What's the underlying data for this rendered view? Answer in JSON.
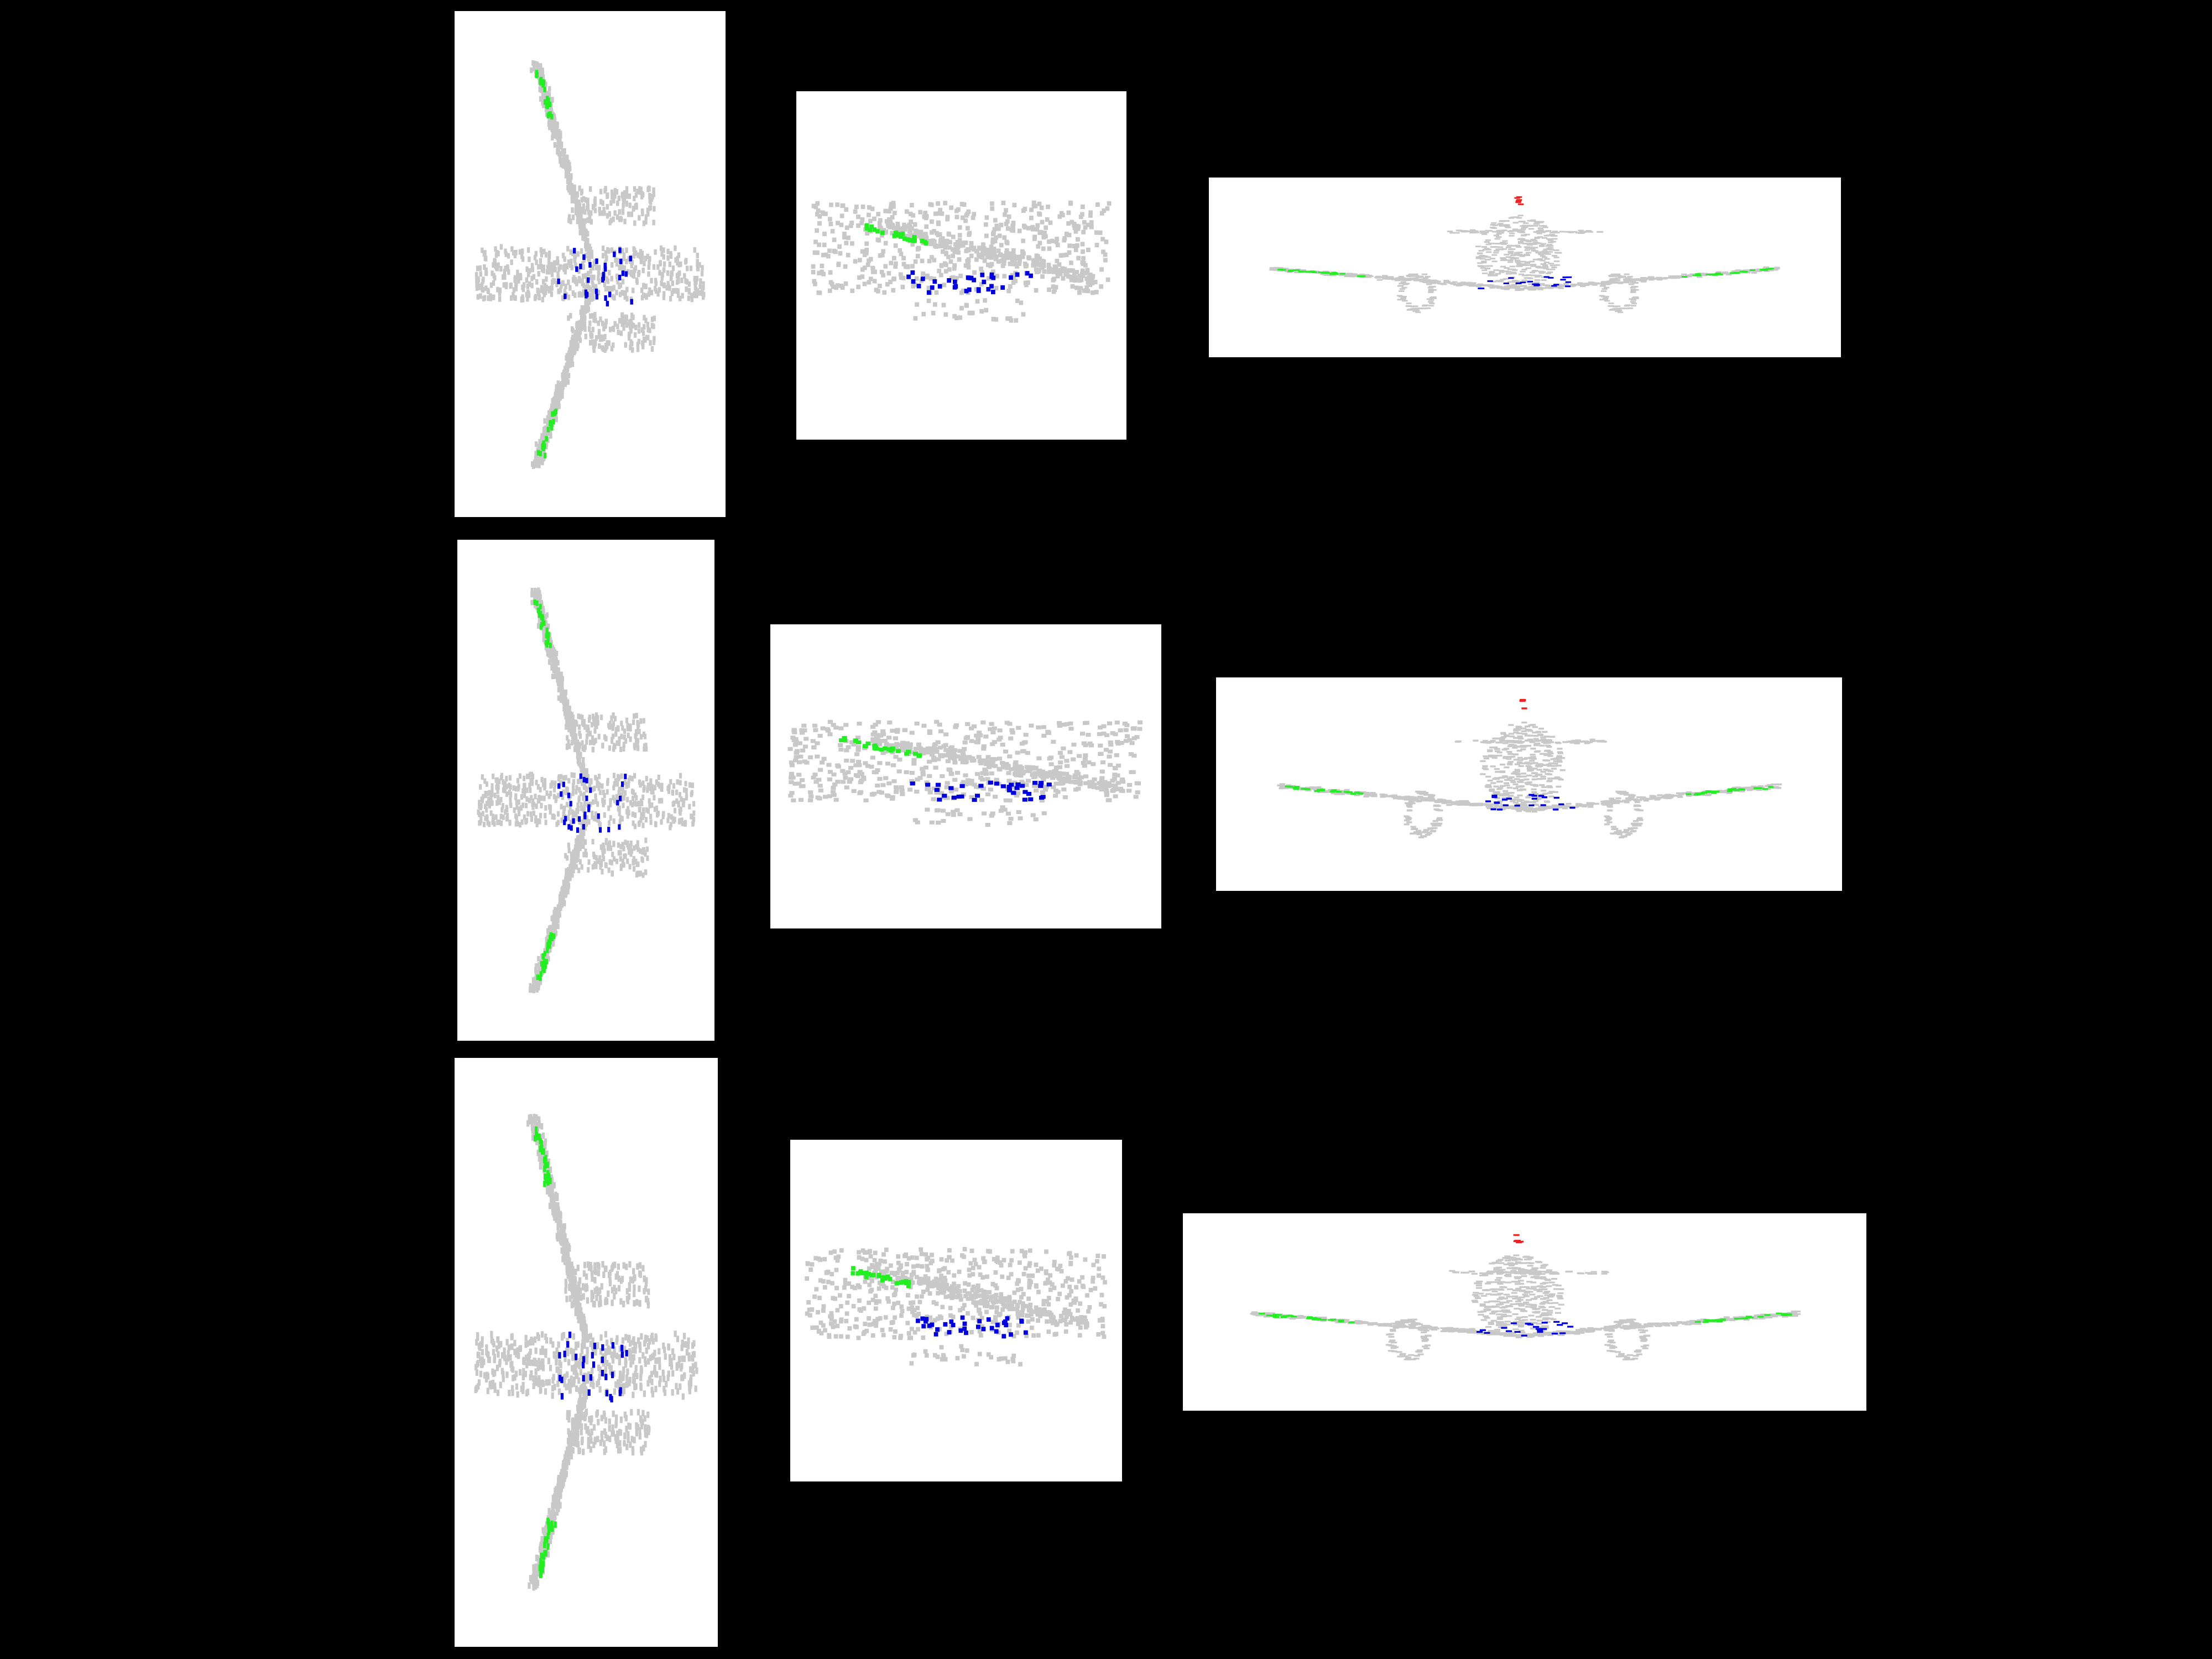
{
  "figure": {
    "rows": [
      {
        "views": [
          {
            "view": "top",
            "panel": "p-r1-top"
          },
          {
            "view": "side",
            "panel": "p-r1-side"
          },
          {
            "view": "front",
            "panel": "p-r1-front"
          }
        ]
      },
      {
        "views": [
          {
            "view": "top",
            "panel": "p-r2-top"
          },
          {
            "view": "side",
            "panel": "p-r2-side"
          },
          {
            "view": "front",
            "panel": "p-r2-front"
          }
        ]
      },
      {
        "views": [
          {
            "view": "top",
            "panel": "p-r3-top"
          },
          {
            "view": "side",
            "panel": "p-r3-side"
          },
          {
            "view": "front",
            "panel": "p-r3-front"
          }
        ]
      }
    ],
    "colors": {
      "background": "#000000",
      "panel": "#ffffff",
      "base_points": "#c8c8c8",
      "wingtip_points": "#22ee22",
      "fuselage_points": "#0000dd",
      "tail_points": "#ee2222"
    }
  }
}
